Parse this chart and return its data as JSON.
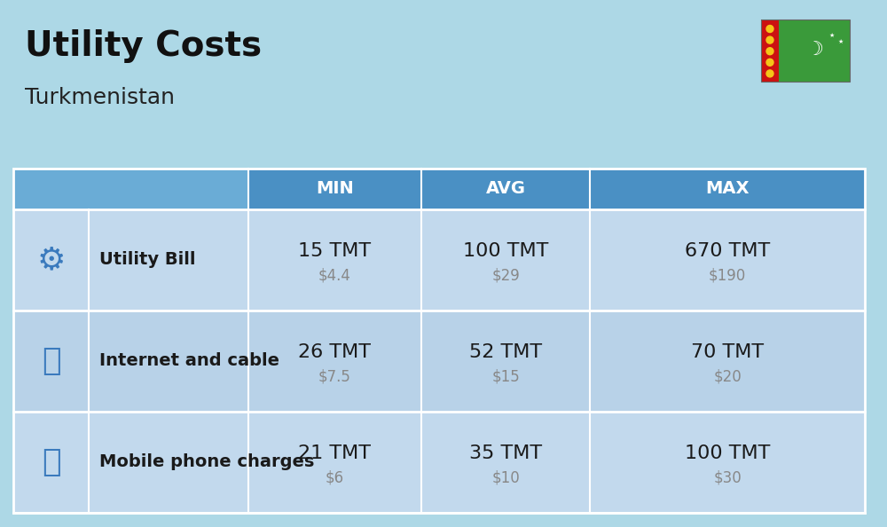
{
  "title": "Utility Costs",
  "subtitle": "Turkmenistan",
  "background_color": "#add8e6",
  "header_bg_color": "#4a90c4",
  "header_text_color": "#ffffff",
  "row_bg_color": "#c2d9ed",
  "row_alt_bg_color": "#b8d2e8",
  "divider_color": "#ffffff",
  "col_headers": [
    "MIN",
    "AVG",
    "MAX"
  ],
  "rows": [
    {
      "label": "Utility Bill",
      "min_tmt": "15 TMT",
      "min_usd": "$4.4",
      "avg_tmt": "100 TMT",
      "avg_usd": "$29",
      "max_tmt": "670 TMT",
      "max_usd": "$190"
    },
    {
      "label": "Internet and cable",
      "min_tmt": "26 TMT",
      "min_usd": "$7.5",
      "avg_tmt": "52 TMT",
      "avg_usd": "$15",
      "max_tmt": "70 TMT",
      "max_usd": "$20"
    },
    {
      "label": "Mobile phone charges",
      "min_tmt": "21 TMT",
      "min_usd": "$6",
      "avg_tmt": "35 TMT",
      "avg_usd": "$10",
      "max_tmt": "100 TMT",
      "max_usd": "$30"
    }
  ],
  "title_fontsize": 28,
  "subtitle_fontsize": 18,
  "header_fontsize": 14,
  "label_fontsize": 14,
  "value_fontsize": 16,
  "usd_fontsize": 12,
  "tmt_color": "#1a1a1a",
  "usd_color": "#888888",
  "label_color": "#1a1a1a"
}
